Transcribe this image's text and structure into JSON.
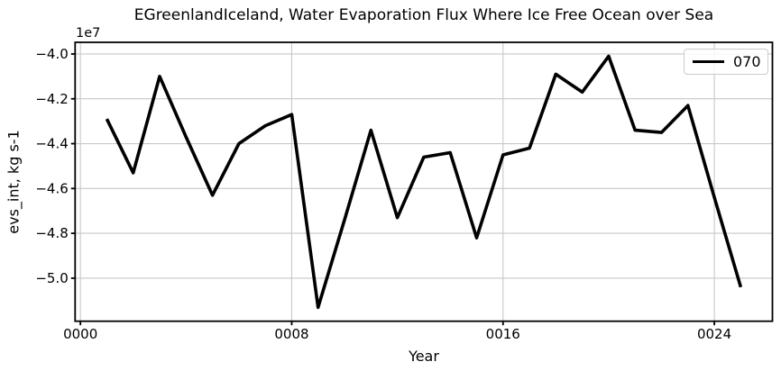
{
  "chart_data": {
    "type": "line",
    "title": "EGreenlandIceland, Water Evaporation Flux Where Ice Free Ocean over Sea",
    "xlabel": "Year",
    "ylabel": "evs_int, kg s-1",
    "y_offset_text": "1e7",
    "y_unit_scale": 10000000,
    "series": [
      {
        "name": "070",
        "x": [
          1,
          2,
          3,
          4,
          5,
          6,
          7,
          8,
          9,
          10,
          11,
          12,
          13,
          14,
          15,
          16,
          17,
          18,
          19,
          20,
          21,
          22,
          23,
          24,
          25
        ],
        "values_1e7": [
          -4.29,
          -4.53,
          -4.1,
          -4.37,
          -4.63,
          -4.4,
          -4.32,
          -4.27,
          -5.13,
          -4.74,
          -4.34,
          -4.73,
          -4.46,
          -4.44,
          -4.82,
          -4.45,
          -4.42,
          -4.09,
          -4.17,
          -4.01,
          -4.34,
          -4.35,
          -4.23,
          -4.64,
          -5.04
        ]
      }
    ],
    "xlim": [
      -0.2,
      26.2
    ],
    "ylim": [
      -5.192,
      -3.948
    ],
    "xticks": {
      "values": [
        0,
        8,
        16,
        24
      ],
      "labels": [
        "0000",
        "0008",
        "0016",
        "0024"
      ]
    },
    "yticks": {
      "values": [
        -4.0,
        -4.2,
        -4.4,
        -4.6,
        -4.8,
        -5.0
      ],
      "labels": [
        "−4.0",
        "−4.2",
        "−4.4",
        "−4.6",
        "−4.8",
        "−5.0"
      ]
    },
    "grid": true,
    "legend": {
      "position": "upper right",
      "entries": [
        {
          "label": "070",
          "color": "#000000"
        }
      ]
    },
    "colors": {
      "line": "#000000",
      "grid": "#c8c8c8",
      "spine": "#000000",
      "background": "#ffffff",
      "text": "#000000"
    }
  }
}
